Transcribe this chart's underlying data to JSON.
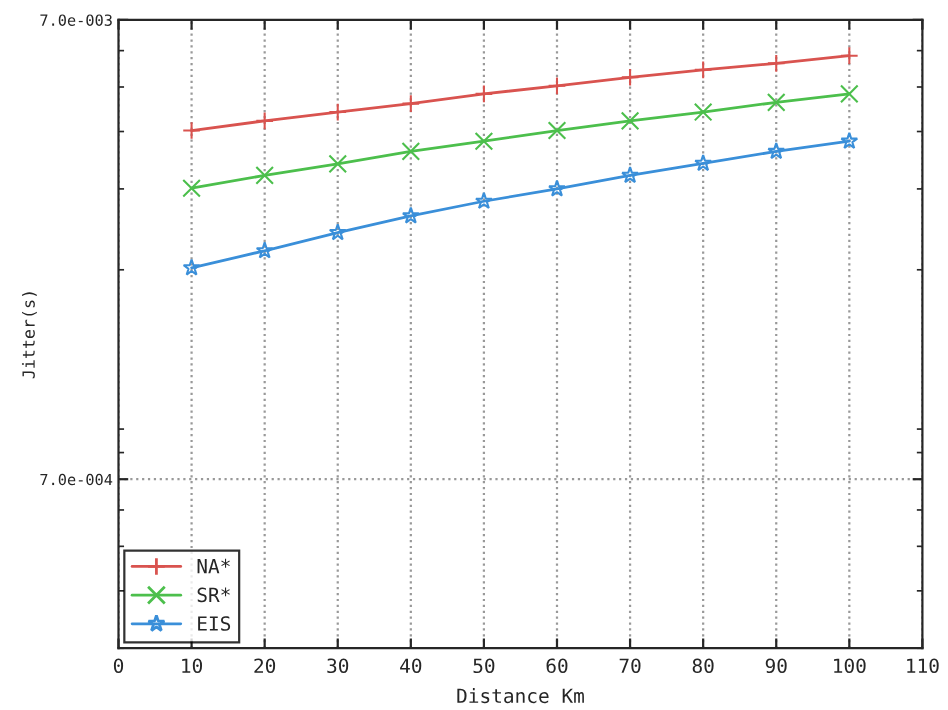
{
  "chart_data": {
    "type": "line",
    "xlabel": "Distance Km",
    "ylabel": "Jitter(s)",
    "x": [
      10,
      20,
      30,
      40,
      50,
      60,
      70,
      80,
      90,
      100
    ],
    "series": [
      {
        "name": "NA*",
        "color": "#d9534f",
        "marker": "cross",
        "values": [
          0.00402,
          0.00422,
          0.00441,
          0.0046,
          0.00483,
          0.00503,
          0.00525,
          0.00545,
          0.00563,
          0.00585
        ]
      },
      {
        "name": "SR*",
        "color": "#4cbf4c",
        "marker": "x",
        "values": [
          0.00301,
          0.00321,
          0.0034,
          0.00362,
          0.00381,
          0.00402,
          0.00422,
          0.00441,
          0.00463,
          0.00483
        ]
      },
      {
        "name": "EIS",
        "color": "#3a8fd9",
        "marker": "star",
        "values": [
          0.00202,
          0.0022,
          0.00241,
          0.00262,
          0.00282,
          0.003,
          0.00321,
          0.00341,
          0.00362,
          0.00381
        ]
      }
    ],
    "log": "y",
    "xlim": [
      0,
      110
    ],
    "xticks": [
      0,
      10,
      20,
      30,
      40,
      50,
      60,
      70,
      80,
      90,
      100,
      110
    ],
    "ylim": [
      0.0003,
      0.007
    ],
    "yticks": [
      {
        "value": 0.0007,
        "label": "7.0e-004"
      },
      {
        "value": 0.007,
        "label": "7.0e-003"
      }
    ],
    "grid": true,
    "legend": "bottom left",
    "line_style": "solid"
  }
}
